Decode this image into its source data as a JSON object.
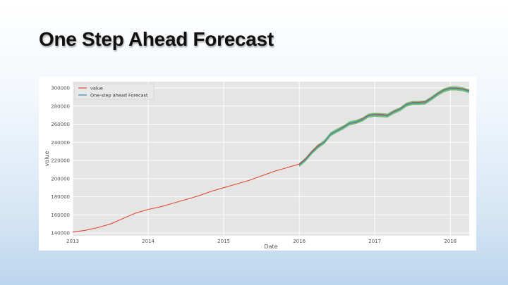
{
  "slide": {
    "title": "One Step Ahead Forecast"
  },
  "chart_data": {
    "type": "line",
    "xlabel": "Date",
    "ylabel": "value",
    "xlim": [
      "2013-01",
      "2018-04"
    ],
    "ylim": [
      137000,
      307000
    ],
    "x_ticks": [
      "2013",
      "2014",
      "2015",
      "2016",
      "2017",
      "2018"
    ],
    "y_ticks": [
      140000,
      160000,
      180000,
      200000,
      220000,
      240000,
      260000,
      280000,
      300000
    ],
    "grid": true,
    "legend_position": "top-left",
    "colors": {
      "value": "#e24a33",
      "forecast": "#348abd",
      "confidence_band": "#4caf50",
      "background": "#e5e5e5"
    },
    "series": [
      {
        "name": "value",
        "x": [
          "2013-01",
          "2013-03",
          "2013-05",
          "2013-07",
          "2013-09",
          "2013-11",
          "2014-01",
          "2014-03",
          "2014-05",
          "2014-07",
          "2014-09",
          "2014-11",
          "2015-01",
          "2015-03",
          "2015-05",
          "2015-07",
          "2015-09",
          "2015-11",
          "2016-01",
          "2016-02",
          "2016-03",
          "2016-04",
          "2016-05",
          "2016-06",
          "2016-07",
          "2016-08",
          "2016-09",
          "2016-10",
          "2016-11",
          "2016-12",
          "2017-01",
          "2017-02",
          "2017-03",
          "2017-04",
          "2017-05",
          "2017-06",
          "2017-07",
          "2017-08",
          "2017-09",
          "2017-10",
          "2017-11",
          "2017-12",
          "2018-01",
          "2018-02",
          "2018-03",
          "2018-04"
        ],
        "values": [
          141000,
          143000,
          146000,
          150000,
          156000,
          162000,
          166000,
          169000,
          173000,
          177000,
          181000,
          186000,
          190000,
          194000,
          198000,
          203000,
          208000,
          212000,
          216000,
          222000,
          230000,
          237000,
          240000,
          249000,
          253000,
          257000,
          261000,
          262000,
          266000,
          270000,
          271000,
          271000,
          270000,
          274000,
          277000,
          282000,
          284000,
          284000,
          285000,
          289000,
          294000,
          298000,
          300000,
          300000,
          299000,
          297000
        ]
      },
      {
        "name": "One-step ahead Forecast",
        "x": [
          "2016-01",
          "2016-02",
          "2016-03",
          "2016-04",
          "2016-05",
          "2016-06",
          "2016-07",
          "2016-08",
          "2016-09",
          "2016-10",
          "2016-11",
          "2016-12",
          "2017-01",
          "2017-02",
          "2017-03",
          "2017-04",
          "2017-05",
          "2017-06",
          "2017-07",
          "2017-08",
          "2017-09",
          "2017-10",
          "2017-11",
          "2017-12",
          "2018-01",
          "2018-02",
          "2018-03",
          "2018-04"
        ],
        "values": [
          215000,
          221000,
          229000,
          235500,
          240500,
          249000,
          253000,
          256500,
          261000,
          262500,
          265000,
          269500,
          270500,
          270000,
          269500,
          273500,
          276500,
          281500,
          283500,
          283500,
          284000,
          288500,
          293500,
          297500,
          299500,
          299500,
          298500,
          296500
        ]
      }
    ]
  }
}
